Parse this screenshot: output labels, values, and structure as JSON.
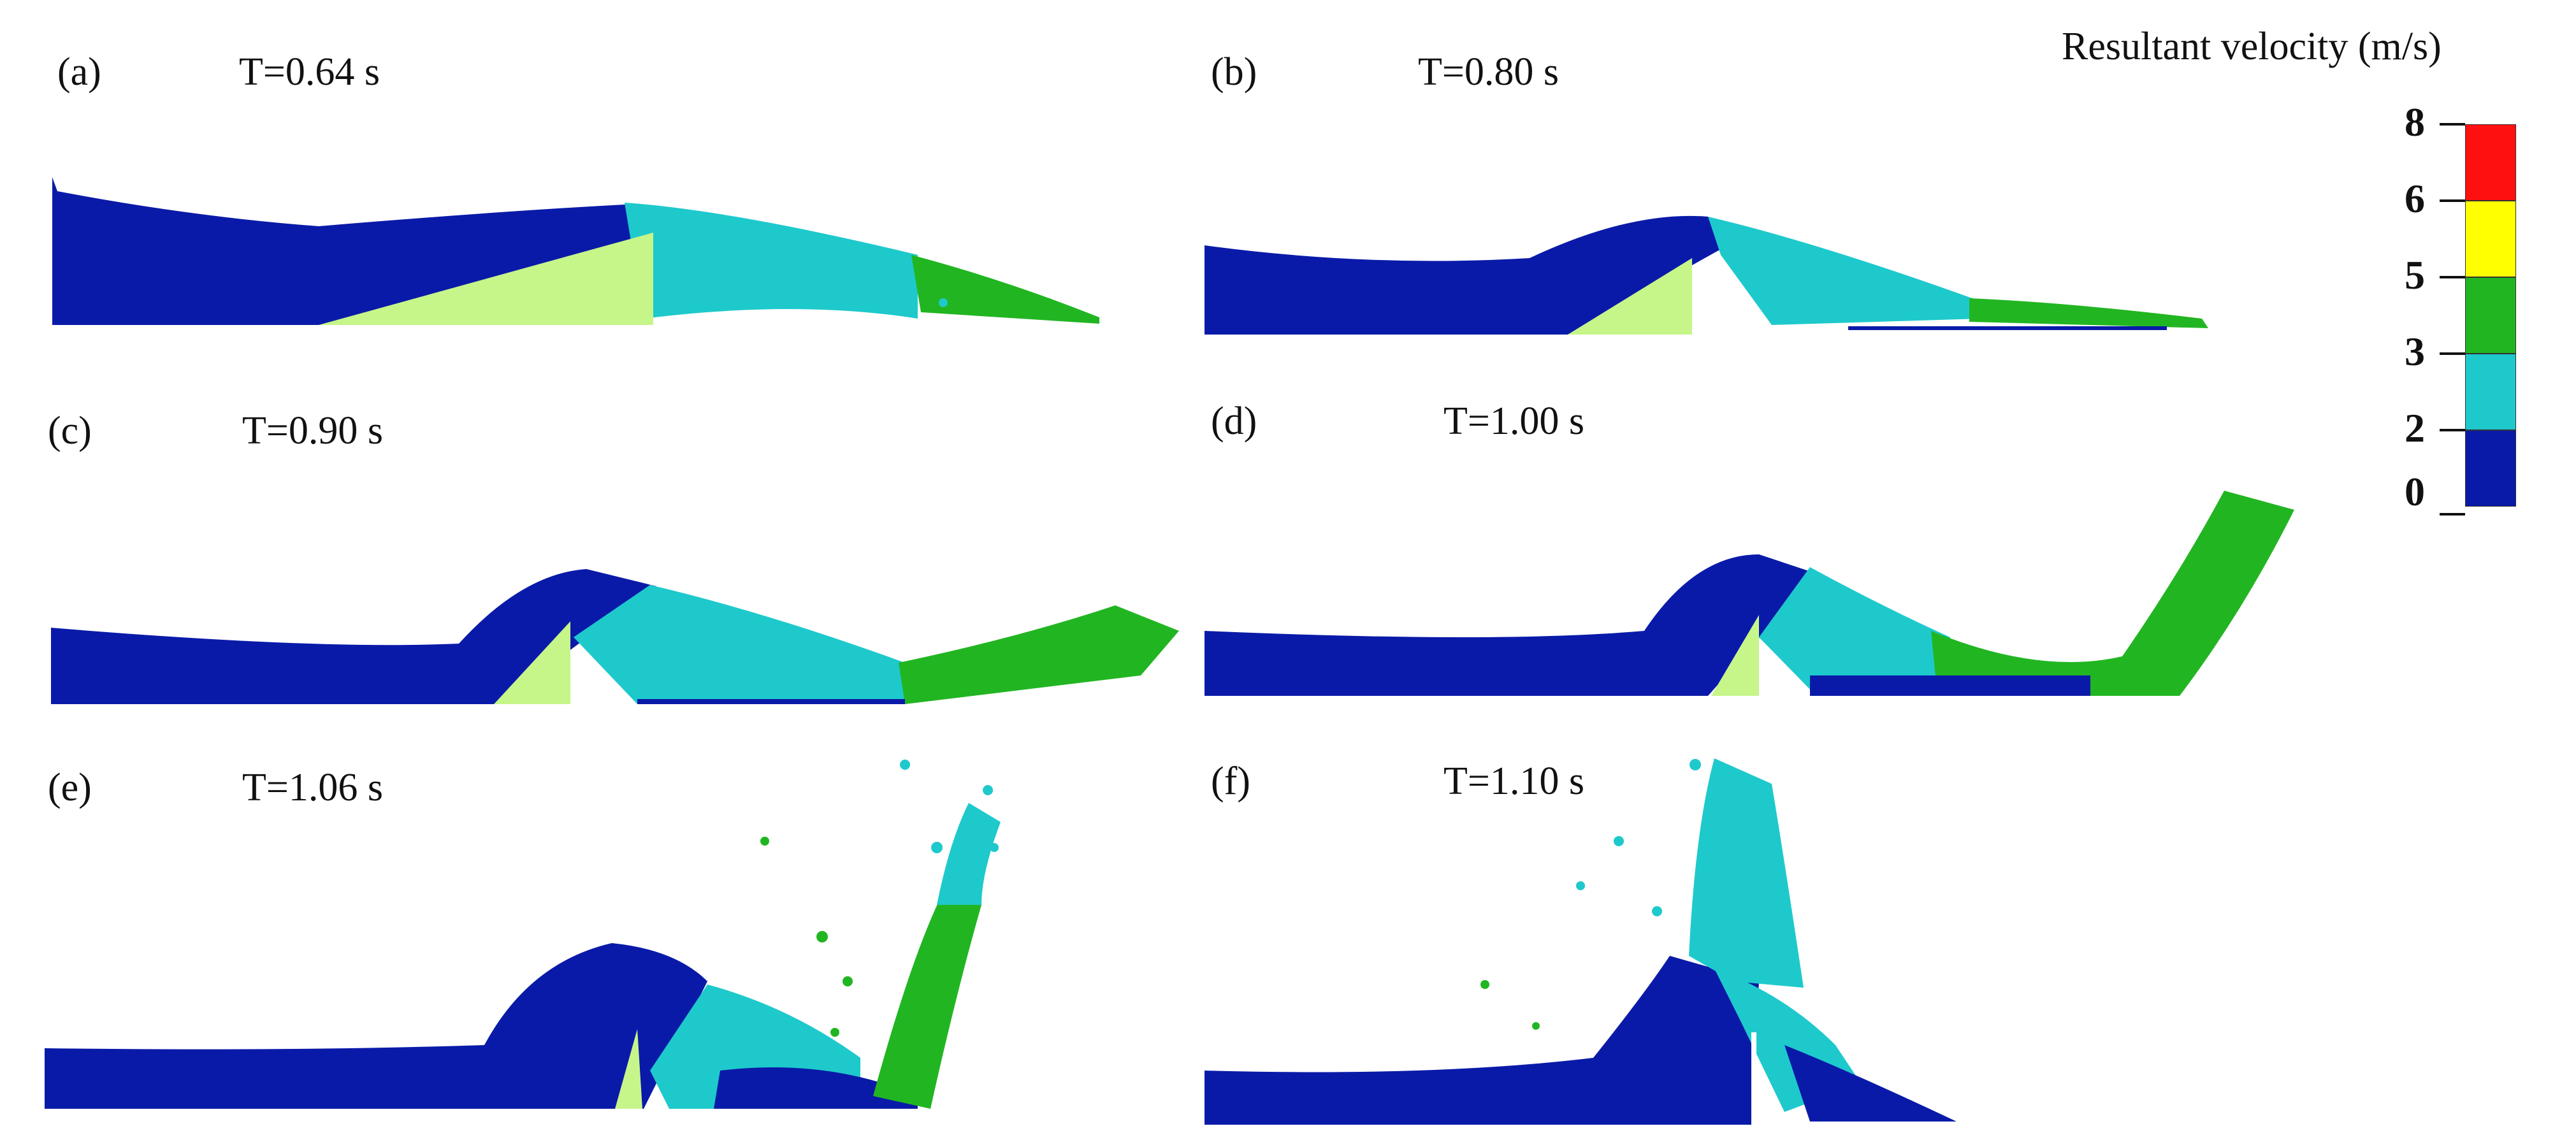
{
  "colors": {
    "dark_blue": "#0a1aa8",
    "cyan": "#1ec9cc",
    "green": "#22b522",
    "yellow": "#ffff00",
    "red": "#ff1010",
    "obstacle": "#c6f58a"
  },
  "legend": {
    "title": "Resultant velocity (m/s)",
    "ticks": [
      "8",
      "6",
      "5",
      "3",
      "2",
      "0"
    ],
    "segments": [
      {
        "range": "6-8",
        "color": "#ff1010"
      },
      {
        "range": "5-6",
        "color": "#ffff00"
      },
      {
        "range": "3-5",
        "color": "#22b522"
      },
      {
        "range": "2-3",
        "color": "#1ec9cc"
      },
      {
        "range": "0-2",
        "color": "#0a1aa8"
      }
    ]
  },
  "panels": [
    {
      "id": "(a)",
      "time": "T=0.64 s"
    },
    {
      "id": "(b)",
      "time": "T=0.80 s"
    },
    {
      "id": "(c)",
      "time": "T=0.90 s"
    },
    {
      "id": "(d)",
      "time": "T=1.00 s"
    },
    {
      "id": "(e)",
      "time": "T=1.06 s"
    },
    {
      "id": "(f)",
      "time": "T=1.10 s"
    }
  ]
}
